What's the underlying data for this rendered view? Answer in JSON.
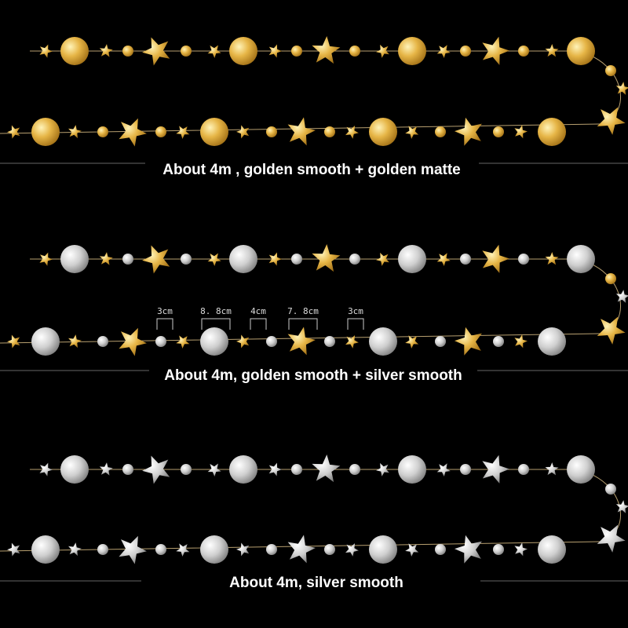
{
  "sections": [
    {
      "caption": "About 4m , golden smooth + golden matte"
    },
    {
      "caption": "About 4m, golden smooth + silver smooth",
      "dimensions": [
        "3cm",
        "8. 8cm",
        "4cm",
        "7. 8cm",
        "3cm"
      ]
    },
    {
      "caption": "About 4m, silver smooth"
    }
  ]
}
